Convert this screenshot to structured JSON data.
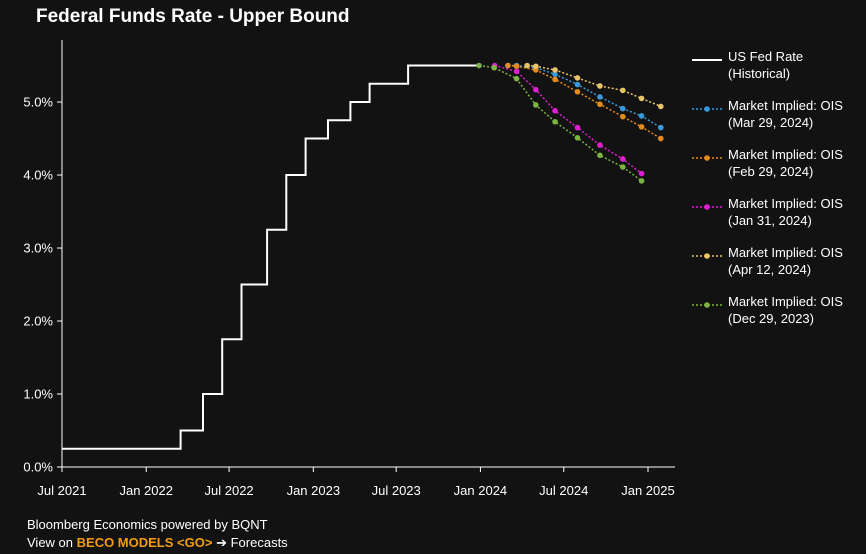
{
  "title": "Federal Funds Rate - Upper Bound",
  "footer": {
    "line1": "Bloomberg Economics powered by BQNT",
    "prefix": "View on ",
    "command": "BECO MODELS <GO>",
    "arrow": "➔",
    "suffix": "Forecasts"
  },
  "legend": [
    {
      "line1": "US Fed Rate",
      "line2": "(Historical)",
      "color": "#ffffff",
      "style": "solid"
    },
    {
      "line1": "Market Implied: OIS",
      "line2": "(Mar 29, 2024)",
      "color": "#3a9ad9",
      "style": "dotted"
    },
    {
      "line1": "Market Implied: OIS",
      "line2": "(Feb 29, 2024)",
      "color": "#e38b1c",
      "style": "dotted"
    },
    {
      "line1": "Market Implied: OIS",
      "line2": "(Jan 31, 2024)",
      "color": "#e020d0",
      "style": "dotted"
    },
    {
      "line1": "Market Implied: OIS",
      "line2": "(Apr 12, 2024)",
      "color": "#e8c36a",
      "style": "dotted"
    },
    {
      "line1": "Market Implied: OIS",
      "line2": "(Dec 29, 2023)",
      "color": "#7cb342",
      "style": "dotted"
    }
  ],
  "chart_data": {
    "type": "line",
    "title": "Federal Funds Rate - Upper Bound",
    "xlabel": "",
    "ylabel": "",
    "xlim": [
      "2021-07-01",
      "2025-03-01"
    ],
    "ylim": [
      0,
      5.85
    ],
    "grid": false,
    "legend_position": "right",
    "x_ticks": [
      {
        "label": "Jul 2021",
        "date": "2021-07-01"
      },
      {
        "label": "Jan 2022",
        "date": "2022-01-01"
      },
      {
        "label": "Jul 2022",
        "date": "2022-07-01"
      },
      {
        "label": "Jan 2023",
        "date": "2023-01-01"
      },
      {
        "label": "Jul 2023",
        "date": "2023-07-01"
      },
      {
        "label": "Jan 2024",
        "date": "2024-01-01"
      },
      {
        "label": "Jul 2024",
        "date": "2024-07-01"
      },
      {
        "label": "Jan 2025",
        "date": "2025-01-01"
      }
    ],
    "y_ticks": [
      {
        "label": "0.0%",
        "value": 0
      },
      {
        "label": "1.0%",
        "value": 1
      },
      {
        "label": "2.0%",
        "value": 2
      },
      {
        "label": "3.0%",
        "value": 3
      },
      {
        "label": "4.0%",
        "value": 4
      },
      {
        "label": "5.0%",
        "value": 5
      }
    ],
    "historical": {
      "name": "US Fed Rate (Historical)",
      "color": "#ffffff",
      "step": true,
      "points": [
        {
          "date": "2021-07-01",
          "value": 0.25
        },
        {
          "date": "2022-03-17",
          "value": 0.5
        },
        {
          "date": "2022-05-05",
          "value": 1.0
        },
        {
          "date": "2022-06-16",
          "value": 1.75
        },
        {
          "date": "2022-07-28",
          "value": 2.5
        },
        {
          "date": "2022-09-22",
          "value": 3.25
        },
        {
          "date": "2022-11-03",
          "value": 4.0
        },
        {
          "date": "2022-12-15",
          "value": 4.5
        },
        {
          "date": "2023-02-02",
          "value": 4.75
        },
        {
          "date": "2023-03-23",
          "value": 5.0
        },
        {
          "date": "2023-05-04",
          "value": 5.25
        },
        {
          "date": "2023-07-27",
          "value": 5.5
        },
        {
          "date": "2024-01-01",
          "value": 5.5
        }
      ]
    },
    "series": [
      {
        "name": "Market Implied: OIS (Mar 29, 2024)",
        "color": "#3a9ad9",
        "points": [
          {
            "date": "2024-03-01",
            "value": 5.5
          },
          {
            "date": "2024-03-20",
            "value": 5.5
          },
          {
            "date": "2024-05-01",
            "value": 5.47
          },
          {
            "date": "2024-06-12",
            "value": 5.38
          },
          {
            "date": "2024-07-31",
            "value": 5.24
          },
          {
            "date": "2024-09-18",
            "value": 5.07
          },
          {
            "date": "2024-11-07",
            "value": 4.91
          },
          {
            "date": "2024-12-18",
            "value": 4.81
          },
          {
            "date": "2025-01-29",
            "value": 4.65
          }
        ]
      },
      {
        "name": "Market Implied: OIS (Feb 29, 2024)",
        "color": "#e38b1c",
        "points": [
          {
            "date": "2024-03-01",
            "value": 5.5
          },
          {
            "date": "2024-03-20",
            "value": 5.49
          },
          {
            "date": "2024-05-01",
            "value": 5.44
          },
          {
            "date": "2024-06-12",
            "value": 5.31
          },
          {
            "date": "2024-07-31",
            "value": 5.14
          },
          {
            "date": "2024-09-18",
            "value": 4.97
          },
          {
            "date": "2024-11-07",
            "value": 4.8
          },
          {
            "date": "2024-12-18",
            "value": 4.66
          },
          {
            "date": "2025-01-29",
            "value": 4.5
          }
        ]
      },
      {
        "name": "Market Implied: OIS (Jan 31, 2024)",
        "color": "#e020d0",
        "points": [
          {
            "date": "2024-02-01",
            "value": 5.5
          },
          {
            "date": "2024-03-20",
            "value": 5.42
          },
          {
            "date": "2024-05-01",
            "value": 5.17
          },
          {
            "date": "2024-06-12",
            "value": 4.88
          },
          {
            "date": "2024-07-31",
            "value": 4.65
          },
          {
            "date": "2024-09-18",
            "value": 4.41
          },
          {
            "date": "2024-11-07",
            "value": 4.22
          },
          {
            "date": "2024-12-18",
            "value": 4.02
          }
        ]
      },
      {
        "name": "Market Implied: OIS (Apr 12, 2024)",
        "color": "#e8c36a",
        "points": [
          {
            "date": "2024-04-12",
            "value": 5.5
          },
          {
            "date": "2024-05-01",
            "value": 5.49
          },
          {
            "date": "2024-06-12",
            "value": 5.44
          },
          {
            "date": "2024-07-31",
            "value": 5.33
          },
          {
            "date": "2024-09-18",
            "value": 5.22
          },
          {
            "date": "2024-11-07",
            "value": 5.16
          },
          {
            "date": "2024-12-18",
            "value": 5.05
          },
          {
            "date": "2025-01-29",
            "value": 4.94
          }
        ]
      },
      {
        "name": "Market Implied: OIS (Dec 29, 2023)",
        "color": "#7cb342",
        "points": [
          {
            "date": "2023-12-29",
            "value": 5.5
          },
          {
            "date": "2024-01-31",
            "value": 5.47
          },
          {
            "date": "2024-03-20",
            "value": 5.32
          },
          {
            "date": "2024-05-01",
            "value": 4.96
          },
          {
            "date": "2024-06-12",
            "value": 4.73
          },
          {
            "date": "2024-07-31",
            "value": 4.51
          },
          {
            "date": "2024-09-18",
            "value": 4.27
          },
          {
            "date": "2024-11-07",
            "value": 4.11
          },
          {
            "date": "2024-12-18",
            "value": 3.92
          }
        ]
      }
    ]
  }
}
